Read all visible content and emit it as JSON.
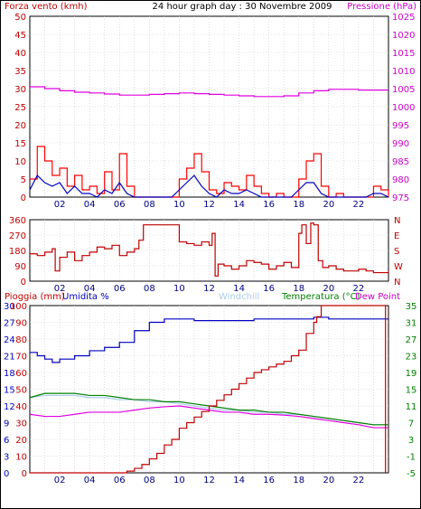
{
  "chart_data": [
    {
      "type": "line",
      "title": "24 hour graph day : 30 Novembre 2009",
      "ylabel_left": "Forza vento (kmh)",
      "ylabel_right": "Pressione (hPa)",
      "x_ticks": [
        "02",
        "04",
        "06",
        "08",
        "10",
        "12",
        "14",
        "16",
        "18",
        "20",
        "22"
      ],
      "xlim": [
        0,
        24
      ],
      "ylim_left": [
        0,
        50
      ],
      "ylim_right": [
        975,
        1025
      ],
      "y_ticks_left": [
        0,
        5,
        10,
        15,
        20,
        25,
        30,
        35,
        40,
        45,
        50
      ],
      "y_ticks_right": [
        975,
        980,
        985,
        990,
        995,
        1000,
        1005,
        1010,
        1015,
        1020,
        1025
      ],
      "grid": true,
      "colors": {
        "gust": "#ff0000",
        "wind": "#0000c0",
        "pressure": "#e000e0"
      },
      "series": [
        {
          "axis": "right",
          "color": "#e000e0",
          "x": [
            0,
            1,
            2,
            3,
            4,
            5,
            6,
            7,
            8,
            9,
            10,
            11,
            12,
            13,
            14,
            15,
            16,
            17,
            18,
            19,
            20,
            21,
            22,
            23,
            24
          ],
          "values": [
            1005.5,
            1005,
            1004.4,
            1004,
            1003.8,
            1003.5,
            1003.2,
            1003.2,
            1003.4,
            1003.6,
            1003.8,
            1003.6,
            1003.4,
            1003.2,
            1003,
            1002.8,
            1002.8,
            1003,
            1003.8,
            1004.4,
            1004.8,
            1004.8,
            1004.6,
            1004.6,
            1004.6
          ]
        },
        {
          "axis": "left",
          "color": "#ff0000",
          "x": [
            0,
            0.5,
            1,
            1.5,
            2,
            2.5,
            3,
            3.5,
            4,
            4.5,
            5,
            5.5,
            6,
            6.5,
            7,
            7.5,
            8,
            8.5,
            9,
            9.5,
            10,
            10.5,
            11,
            11.5,
            12,
            12.5,
            13,
            13.5,
            14,
            14.5,
            15,
            15.5,
            16,
            16.5,
            17,
            17.5,
            18,
            18.5,
            19,
            19.5,
            20,
            20.5,
            21,
            21.5,
            22,
            22.5,
            23,
            23.5,
            24
          ],
          "values": [
            5,
            14,
            10,
            6,
            8,
            3,
            6,
            2,
            3,
            1,
            7,
            2,
            12,
            3,
            0,
            0,
            0,
            0,
            0,
            0,
            5,
            8,
            12,
            7,
            2,
            1,
            4,
            3,
            2,
            6,
            3,
            1,
            0,
            1,
            0,
            0,
            5,
            10,
            12,
            3,
            0,
            1,
            0,
            0,
            0,
            0,
            3,
            2,
            0
          ]
        },
        {
          "axis": "left",
          "color": "#0000c0",
          "x": [
            0,
            0.5,
            1,
            1.5,
            2,
            2.5,
            3,
            3.5,
            4,
            4.5,
            5,
            5.5,
            6,
            6.5,
            7,
            7.5,
            8,
            8.5,
            9,
            9.5,
            10,
            10.5,
            11,
            11.5,
            12,
            12.5,
            13,
            13.5,
            14,
            14.5,
            15,
            15.5,
            16,
            16.5,
            17,
            17.5,
            18,
            18.5,
            19,
            19.5,
            20,
            20.5,
            21,
            21.5,
            22,
            22.5,
            23,
            23.5,
            24
          ],
          "values": [
            2,
            6,
            4,
            3,
            4,
            1,
            3,
            1,
            1,
            0,
            2,
            1,
            4,
            1,
            0,
            0,
            0,
            0,
            0,
            0,
            2,
            4,
            6,
            3,
            1,
            0,
            2,
            1,
            1,
            2,
            1,
            0,
            0,
            0,
            0,
            0,
            2,
            4,
            4,
            1,
            0,
            0,
            0,
            0,
            0,
            0,
            1,
            1,
            0
          ]
        }
      ]
    },
    {
      "type": "line",
      "ylabel_right": "N W S E N",
      "y_ticks_left": [
        0,
        90,
        180,
        270,
        360
      ],
      "y_ticks_right": [
        "N",
        "W",
        "S",
        "E",
        "N"
      ],
      "x_ticks": [
        "02",
        "04",
        "06",
        "08",
        "10",
        "12",
        "14",
        "16",
        "18",
        "20",
        "22"
      ],
      "xlim": [
        0,
        24
      ],
      "ylim": [
        0,
        360
      ],
      "grid": true,
      "series": [
        {
          "color": "#c00000",
          "x": [
            0,
            0.5,
            1,
            1.5,
            1.7,
            2,
            2.5,
            3,
            3.5,
            4,
            4.5,
            5,
            5.5,
            6,
            6.5,
            7,
            7.3,
            7.6,
            8,
            8.5,
            9,
            9.5,
            10,
            10.5,
            11,
            11.5,
            12,
            12.2,
            12.4,
            12.6,
            13,
            13.5,
            14,
            14.5,
            15,
            15.5,
            16,
            16.5,
            17,
            17.5,
            18,
            18.2,
            18.5,
            18.8,
            19,
            19.3,
            19.6,
            20,
            20.5,
            21,
            21.5,
            22,
            22.5,
            23,
            23.5,
            24
          ],
          "values": [
            160,
            150,
            170,
            190,
            60,
            140,
            170,
            120,
            150,
            170,
            200,
            190,
            210,
            150,
            170,
            190,
            240,
            330,
            330,
            330,
            330,
            330,
            230,
            220,
            210,
            230,
            210,
            280,
            30,
            100,
            90,
            70,
            90,
            120,
            110,
            100,
            70,
            90,
            110,
            80,
            280,
            330,
            220,
            340,
            330,
            120,
            80,
            90,
            70,
            60,
            60,
            70,
            60,
            50,
            50,
            60
          ]
        }
      ]
    },
    {
      "type": "line",
      "ylabel_left": "Pioggia (mm)",
      "ylabel_left2": "Umidita %",
      "label_windchill": "Windchill",
      "ylabel_right": "Temperatura (°C)",
      "label_dewpoint": "Dew Point",
      "x_ticks": [
        "02",
        "04",
        "06",
        "08",
        "10",
        "12",
        "14",
        "16",
        "18",
        "20",
        "22"
      ],
      "xlim": [
        0,
        24
      ],
      "y_ticks_left": [
        0,
        3,
        6,
        9,
        12,
        15,
        18,
        21,
        24,
        27,
        30
      ],
      "y_ticks_left2": [
        0,
        10,
        20,
        30,
        40,
        50,
        60,
        70,
        80,
        90,
        100
      ],
      "y_ticks_right": [
        -5,
        -1,
        3,
        7,
        11,
        15,
        19,
        23,
        27,
        31,
        35
      ],
      "ylim_left": [
        0,
        30
      ],
      "ylim_right": [
        -5,
        35
      ],
      "grid": true,
      "series": [
        {
          "color": "#c00000",
          "axis": "left",
          "x": [
            0,
            6,
            6.5,
            7,
            7.5,
            8,
            8.5,
            9,
            9.5,
            10,
            10.5,
            11,
            11.5,
            12,
            12.5,
            13,
            13.5,
            14,
            14.5,
            15,
            15.5,
            16,
            16.5,
            17,
            17.5,
            18,
            18.5,
            19,
            19.2,
            19.5,
            20,
            21,
            22,
            23,
            23.8,
            23.8
          ],
          "values": [
            0,
            0,
            0.3,
            0.8,
            1.5,
            2.5,
            3.5,
            5,
            6,
            8,
            9,
            10,
            11,
            12,
            13,
            14,
            15,
            16,
            17,
            18,
            18.5,
            19,
            19.5,
            20,
            21,
            22,
            25,
            27,
            28,
            30,
            30,
            30,
            30,
            30,
            30,
            0
          ]
        },
        {
          "color": "#0000c0",
          "axis": "left2",
          "x": [
            0,
            0.5,
            1,
            1.5,
            2,
            3,
            4,
            5,
            6,
            7,
            8,
            9,
            10,
            11,
            12,
            13,
            14,
            15,
            16,
            17,
            18,
            19,
            20,
            21,
            22,
            23,
            24
          ],
          "values": [
            72,
            70,
            68,
            66,
            68,
            70,
            73,
            75,
            78,
            85,
            90,
            92,
            92,
            91,
            91,
            91,
            91,
            92,
            92,
            92,
            92,
            93,
            92,
            92,
            92,
            92,
            92
          ]
        },
        {
          "color": "#008000",
          "axis": "right",
          "x": [
            0,
            1,
            2,
            3,
            4,
            5,
            6,
            7,
            8,
            9,
            10,
            11,
            12,
            13,
            14,
            15,
            16,
            17,
            18,
            19,
            20,
            21,
            22,
            23,
            24
          ],
          "values": [
            13,
            14,
            14,
            14,
            13.5,
            13.5,
            13,
            12.5,
            12.5,
            12,
            12,
            11.5,
            11,
            10.5,
            10,
            10,
            9.5,
            9.5,
            9,
            8.5,
            8,
            7.5,
            7,
            6.5,
            6.5
          ]
        },
        {
          "color": "#aaccee",
          "axis": "right",
          "x": [
            0,
            1,
            2,
            3,
            4,
            5,
            6,
            7,
            8,
            9,
            10,
            11,
            12,
            13,
            14,
            15,
            16,
            17,
            18,
            19,
            20,
            21,
            22,
            23,
            24
          ],
          "values": [
            13,
            13.5,
            13.5,
            13.5,
            13,
            13,
            12.5,
            12.5,
            12,
            12,
            11.5,
            11,
            10.5,
            10,
            10,
            9.5,
            9.5,
            9,
            9,
            8.5,
            8,
            7.5,
            7,
            6.5,
            6.5
          ]
        },
        {
          "color": "#e000e0",
          "axis": "right",
          "x": [
            0,
            1,
            2,
            3,
            4,
            5,
            6,
            7,
            8,
            9,
            10,
            11,
            12,
            13,
            14,
            15,
            16,
            17,
            18,
            19,
            20,
            21,
            22,
            23,
            24
          ],
          "values": [
            9,
            8.5,
            8.5,
            9,
            9.5,
            9.5,
            9.5,
            10,
            10.5,
            10.8,
            11,
            10.5,
            10,
            9.5,
            9.5,
            9,
            9,
            8.8,
            8.5,
            8,
            7.5,
            7,
            6.5,
            5.8,
            5.8
          ]
        }
      ]
    }
  ]
}
